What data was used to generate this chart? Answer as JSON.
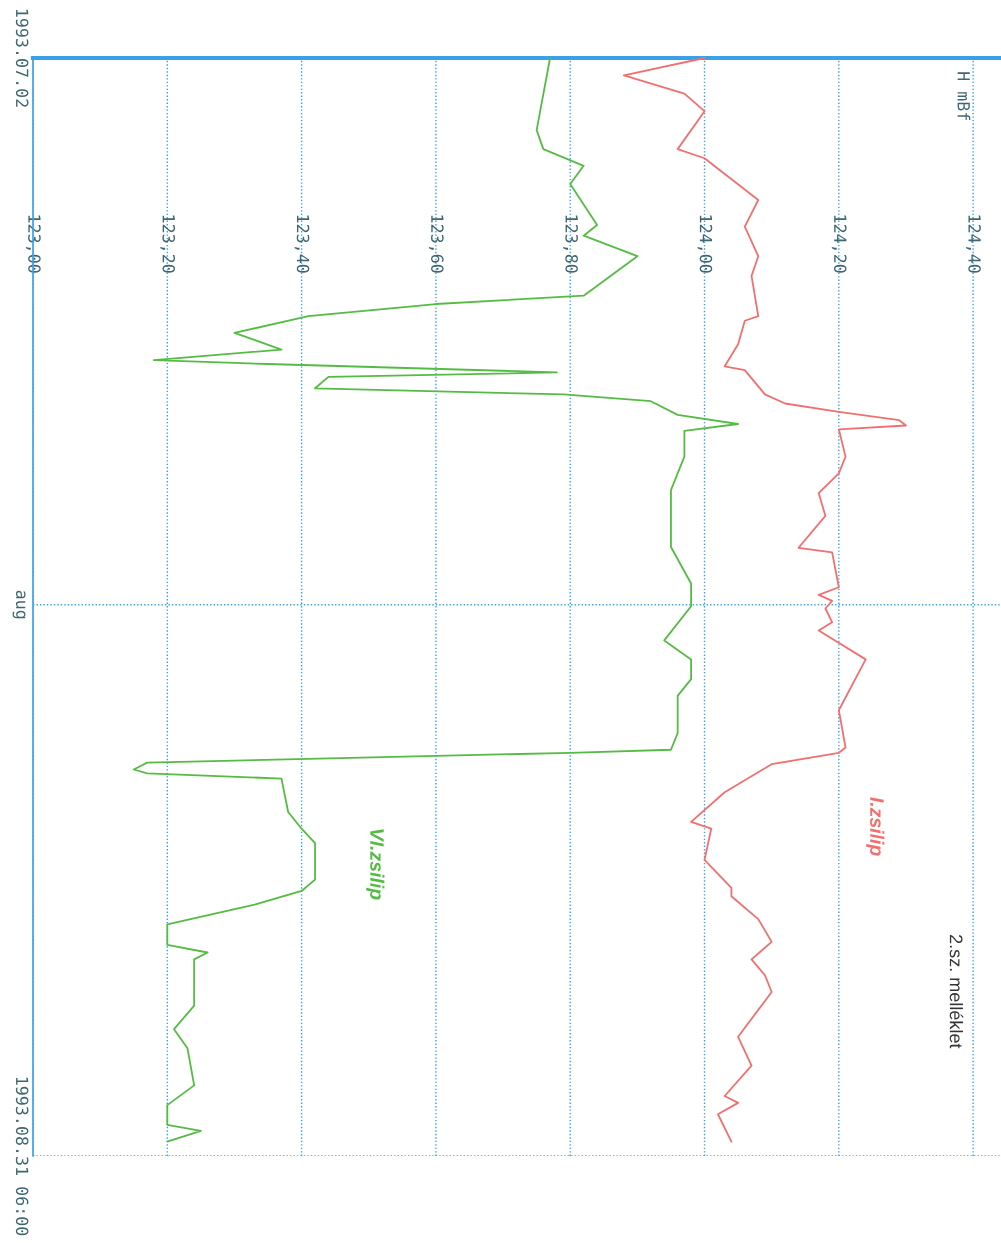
{
  "chart_data": {
    "type": "line",
    "orientation": "horizontal",
    "xlim": [
      123.0,
      124.44
    ],
    "xticks": [
      {
        "value": 123.0,
        "label": "123,00"
      },
      {
        "value": 123.2,
        "label": "123,20"
      },
      {
        "value": 123.4,
        "label": "123,40"
      },
      {
        "value": 123.6,
        "label": "123,60"
      },
      {
        "value": 123.8,
        "label": "123,80"
      },
      {
        "value": 124.0,
        "label": "124,00"
      },
      {
        "value": 124.2,
        "label": "124,20"
      },
      {
        "value": 124.4,
        "label": "124,40"
      }
    ],
    "ylim": [
      "1993-08-31T06:00",
      "1993-07-02"
    ],
    "yticks": [
      {
        "value": "1993-07-02",
        "label": "1993.07.02"
      },
      {
        "value": "1993-08-01",
        "label": "aug"
      },
      {
        "value": "1993-08-31T06:00",
        "label": "1993.08.31 06:00"
      }
    ],
    "grid": true,
    "legend": false,
    "annotations": [
      "H mBf",
      "2.sz. melléklet"
    ],
    "series": [
      {
        "name": "I.zsilip",
        "color": "#f07070",
        "x": [
          "1993-07-02T00:00",
          "1993-07-02T23:00",
          "1993-07-03T23:00",
          "1993-07-04T22:00",
          "1993-07-07T00:00",
          "1993-07-07T12:00",
          "1993-07-09T19:00",
          "1993-07-11T06:00",
          "1993-07-12T21:00",
          "1993-07-13T23:00",
          "1993-07-16T04:00",
          "1993-07-16T10:00",
          "1993-07-17T17:00",
          "1993-07-18T22:00",
          "1993-07-19T03:00",
          "1993-07-20T11:00",
          "1993-07-20T23:00",
          "1993-07-21T10:00",
          "1993-07-21T21:00",
          "1993-07-22T04:00",
          "1993-07-22T09:00",
          "1993-07-23T21:00",
          "1993-07-24T19:00",
          "1993-07-25T21:00",
          "1993-07-27T03:00",
          "1993-07-28T21:00",
          "1993-07-29T03:00",
          "1993-07-31T01:00",
          "1993-07-31T11:00",
          "1993-07-31T19:00",
          "1993-08-01T05:00",
          "1993-08-01T23:00",
          "1993-08-02T10:00",
          "1993-08-04T00:00",
          "1993-08-06T19:00",
          "1993-08-08T20:00",
          "1993-08-09T03:00",
          "1993-08-09T18:00",
          "1993-08-11T07:00",
          "1993-08-12T22:00",
          "1993-08-13T07:00",
          "1993-08-15T00:00",
          "1993-08-16T13:00",
          "1993-08-17T00:00",
          "1993-08-18T06:00",
          "1993-08-19T12:00",
          "1993-08-20T11:00",
          "1993-08-21T08:00",
          "1993-08-22T06:00",
          "1993-08-24T17:00",
          "1993-08-26T07:00",
          "1993-08-27T23:00",
          "1993-08-28T08:00",
          "1993-08-28T23:00",
          "1993-08-30T11:00"
        ],
        "values": [
          124.0,
          123.88,
          123.97,
          124.0,
          123.96,
          124.0,
          124.08,
          124.06,
          124.08,
          124.07,
          124.08,
          124.06,
          124.05,
          124.03,
          124.06,
          124.09,
          124.12,
          124.2,
          124.29,
          124.3,
          124.2,
          124.21,
          124.2,
          124.17,
          124.18,
          124.14,
          124.19,
          124.2,
          124.17,
          124.19,
          124.18,
          124.19,
          124.17,
          124.24,
          124.2,
          124.21,
          124.2,
          124.1,
          124.03,
          123.98,
          124.01,
          124.0,
          124.04,
          124.04,
          124.08,
          124.1,
          124.07,
          124.09,
          124.1,
          124.05,
          124.07,
          124.03,
          124.05,
          124.02,
          124.04
        ]
      },
      {
        "name": "VI.zsilip",
        "color": "#55bb44",
        "x": [
          "1993-07-02T00:00",
          "1993-07-05T23:00",
          "1993-07-07T00:00",
          "1993-07-07T22:00",
          "1993-07-08T22:00",
          "1993-07-11T04:00",
          "1993-07-11T18:00",
          "1993-07-12T21:00",
          "1993-07-15T01:00",
          "1993-07-15T12:00",
          "1993-07-16T04:00",
          "1993-07-17T02:00",
          "1993-07-18T00:00",
          "1993-07-18T14:00",
          "1993-07-18T19:00",
          "1993-07-19T06:00",
          "1993-07-19T12:00",
          "1993-07-20T03:00",
          "1993-07-20T11:00",
          "1993-07-20T20:00",
          "1993-07-21T14:00",
          "1993-07-22T02:00",
          "1993-07-22T11:00",
          "1993-07-23T21:00",
          "1993-07-25T17:00",
          "1993-07-28T20:00",
          "1993-07-30T20:00",
          "1993-08-01T02:00",
          "1993-08-02T23:00",
          "1993-08-04T00:00",
          "1993-08-05T02:00",
          "1993-08-06T00:00",
          "1993-08-08T01:00",
          "1993-08-08T23:00",
          "1993-08-09T03:00",
          "1993-08-09T11:00",
          "1993-08-09T16:00",
          "1993-08-10T01:00",
          "1993-08-10T06:00",
          "1993-08-10T13:00",
          "1993-08-12T09:00",
          "1993-08-13T07:00",
          "1993-08-14T02:00",
          "1993-08-16T02:00",
          "1993-08-16T17:00",
          "1993-08-17T11:00",
          "1993-08-18T13:00",
          "1993-08-19T16:00",
          "1993-08-20T02:00",
          "1993-08-20T11:00",
          "1993-08-23T00:00",
          "1993-08-24T07:00",
          "1993-08-25T08:00",
          "1993-08-27T09:00",
          "1993-08-28T11:00",
          "1993-08-29T13:00",
          "1993-08-29T21:00",
          "1993-08-30T11:00"
        ],
        "values": [
          123.77,
          123.75,
          123.76,
          123.82,
          123.8,
          123.84,
          123.82,
          123.9,
          123.82,
          123.6,
          123.41,
          123.3,
          123.37,
          123.18,
          123.35,
          123.78,
          123.44,
          123.42,
          123.79,
          123.92,
          123.96,
          124.05,
          123.97,
          123.97,
          123.95,
          123.95,
          123.98,
          123.98,
          123.94,
          123.98,
          123.98,
          123.96,
          123.96,
          123.95,
          123.8,
          123.41,
          123.17,
          123.15,
          123.17,
          123.37,
          123.38,
          123.4,
          123.42,
          123.42,
          123.4,
          123.33,
          123.2,
          123.2,
          123.26,
          123.24,
          123.24,
          123.21,
          123.23,
          123.24,
          123.2,
          123.2,
          123.25,
          123.2
        ]
      }
    ]
  }
}
